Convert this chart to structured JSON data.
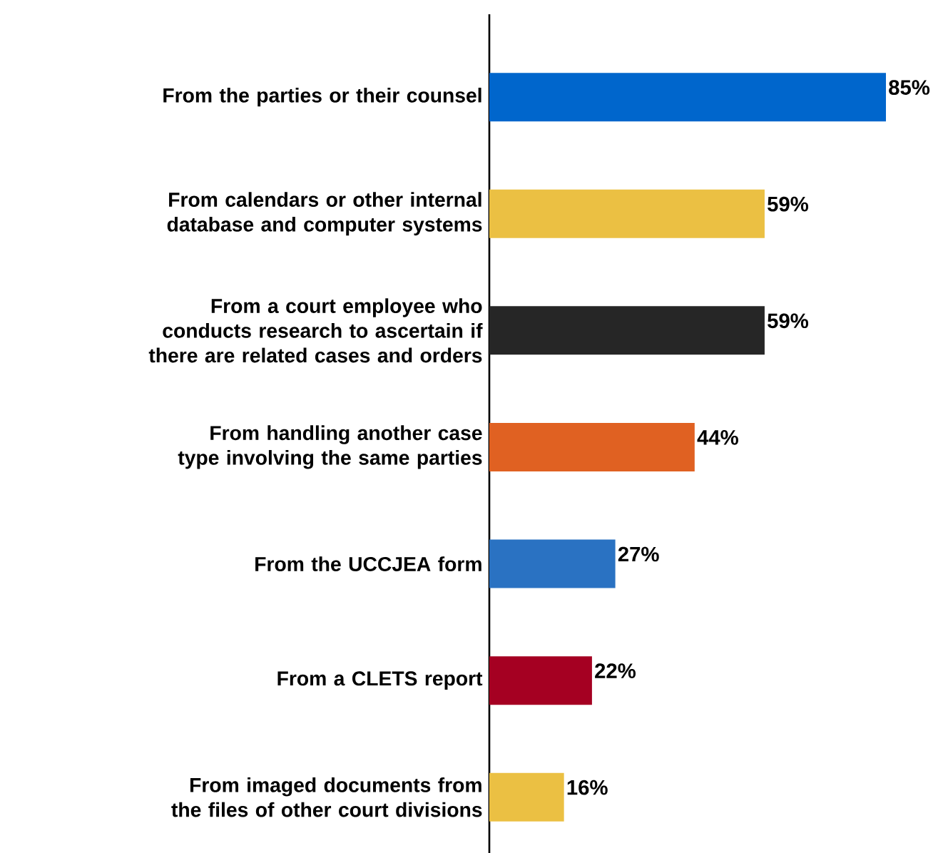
{
  "chart_data": {
    "type": "bar",
    "orientation": "horizontal",
    "categories": [
      "From the parties or their counsel",
      "From calendars or other internal database and computer systems",
      "From a court employee who conducts research to ascertain if there are related cases and orders",
      "From handling another case type involving the same parties",
      "From the UCCJEA form",
      "From a CLETS report",
      "From imaged documents from the files of other court divisions"
    ],
    "values": [
      85,
      59,
      59,
      44,
      27,
      22,
      16
    ],
    "value_labels": [
      "85%",
      "59%",
      "59%",
      "44%",
      "27%",
      "22%",
      "16%"
    ],
    "colors": [
      "#0066cc",
      "#ebc043",
      "#262626",
      "#e06122",
      "#2a72c2",
      "#a50022",
      "#ebc043"
    ]
  }
}
